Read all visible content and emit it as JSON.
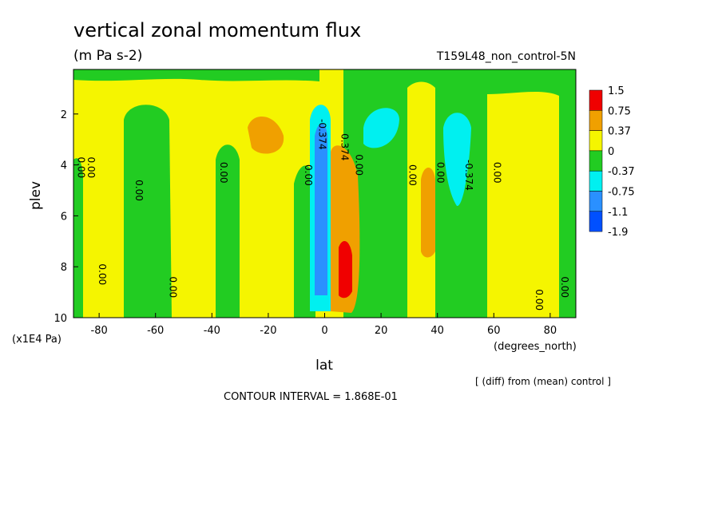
{
  "chart_data": {
    "type": "contour",
    "title": "vertical zonal momentum flux",
    "units": "(m Pa s-2)",
    "subtitle": "T159L48_non_control-5N",
    "xlabel": "lat",
    "xunit": "(degrees_north)",
    "ylabel": "plev",
    "yunit": "(x1E4 Pa)",
    "note": "[ (diff) from (mean) control ]",
    "interval_text": "CONTOUR INTERVAL = 1.868E-01",
    "xlim": [
      -89.1,
      89.1
    ],
    "xticks": [
      -80,
      -60,
      -40,
      -20,
      0,
      20,
      40,
      60,
      80
    ],
    "ylim": [
      10,
      0.25
    ],
    "yticks": [
      2,
      4,
      6,
      8,
      10
    ],
    "levels": [
      1.5,
      0.75,
      0.37,
      0,
      -0.37,
      -0.75,
      -1.1,
      -1.9
    ],
    "level_colors": [
      "#f00000",
      "#f0a000",
      "#f5f500",
      "#22cc22",
      "#00f0f0",
      "#2a90ff",
      "#0050ff"
    ],
    "contour_labels": [
      {
        "text": "0.00",
        "lat": -87.5,
        "plev": 4.1
      },
      {
        "text": "0.00",
        "lat": -84,
        "plev": 4.1
      },
      {
        "text": "0.00",
        "lat": -67,
        "plev": 5.0
      },
      {
        "text": "0.00",
        "lat": -80,
        "plev": 8.3
      },
      {
        "text": "0.00",
        "lat": -55,
        "plev": 8.8
      },
      {
        "text": "0.00",
        "lat": -37,
        "plev": 4.3
      },
      {
        "text": "0.00",
        "lat": -7,
        "plev": 4.4
      },
      {
        "text": "-0.374",
        "lat": -2,
        "plev": 2.8
      },
      {
        "text": "0.374",
        "lat": 6,
        "plev": 3.3
      },
      {
        "text": "0.00",
        "lat": 11,
        "plev": 4.0
      },
      {
        "text": "0.00",
        "lat": 30,
        "plev": 4.4
      },
      {
        "text": "0.00",
        "lat": 40,
        "plev": 4.3
      },
      {
        "text": "-0.374",
        "lat": 50,
        "plev": 4.4
      },
      {
        "text": "0.00",
        "lat": 60,
        "plev": 4.3
      },
      {
        "text": "0.00",
        "lat": 75,
        "plev": 9.3
      },
      {
        "text": "0.00",
        "lat": 84,
        "plev": 8.8
      }
    ]
  }
}
